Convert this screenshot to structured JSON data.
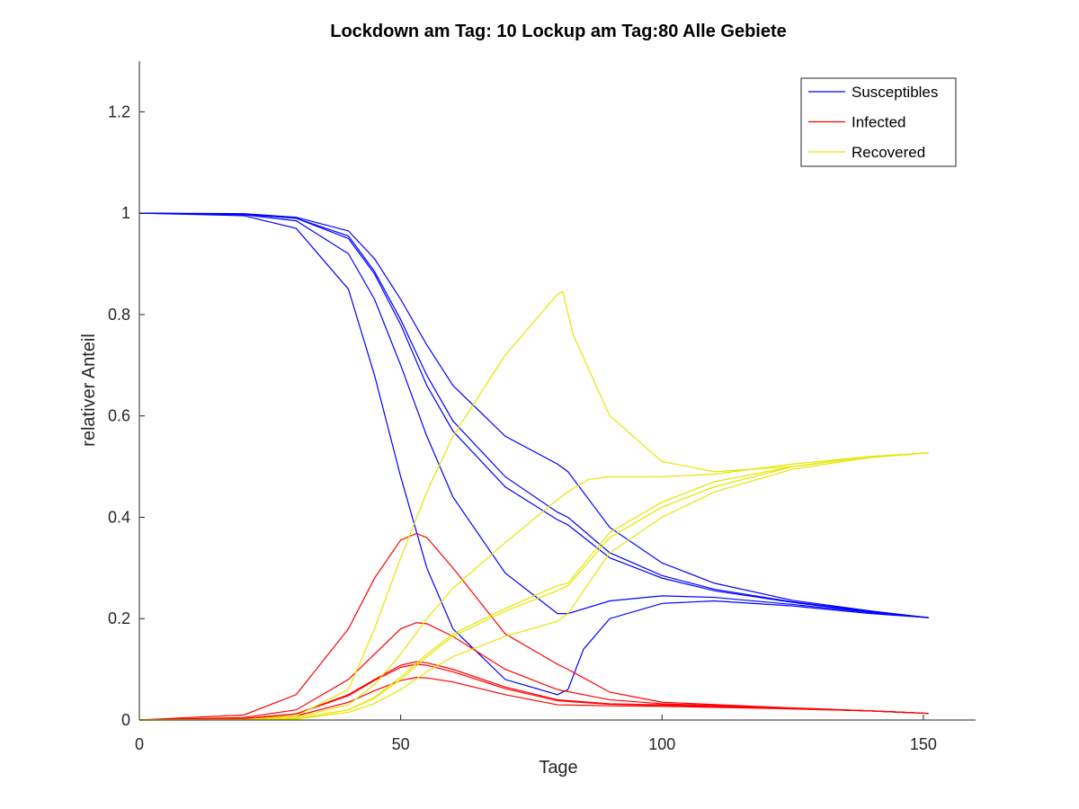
{
  "chart_data": {
    "type": "line",
    "title": "Lockdown am Tag: 10   Lockup am Tag:80  Alle Gebiete",
    "xlabel": "Tage",
    "ylabel": "relativer Anteil",
    "xlim": [
      0,
      160
    ],
    "ylim": [
      0,
      1.3
    ],
    "xticks": [
      0,
      50,
      100,
      150
    ],
    "yticks": [
      0,
      0.2,
      0.4,
      0.6,
      0.8,
      1,
      1.2
    ],
    "grid": false,
    "legend_position": "top-right",
    "legend": [
      {
        "label": "Susceptibles",
        "color": "#0000ff"
      },
      {
        "label": "Infected",
        "color": "#ff0000"
      },
      {
        "label": "Recovered",
        "color": "#e6e600"
      }
    ],
    "series": [
      {
        "group": "Susceptibles",
        "color": "#0000ff",
        "points": [
          [
            0,
            1
          ],
          [
            20,
            0.995
          ],
          [
            30,
            0.97
          ],
          [
            40,
            0.85
          ],
          [
            45,
            0.68
          ],
          [
            50,
            0.48
          ],
          [
            55,
            0.3
          ],
          [
            60,
            0.18
          ],
          [
            70,
            0.08
          ],
          [
            80,
            0.05
          ],
          [
            82,
            0.06
          ],
          [
            85,
            0.14
          ],
          [
            90,
            0.2
          ],
          [
            100,
            0.23
          ],
          [
            110,
            0.235
          ],
          [
            125,
            0.225
          ],
          [
            140,
            0.21
          ],
          [
            151,
            0.202
          ]
        ]
      },
      {
        "group": "Susceptibles",
        "color": "#0000ff",
        "points": [
          [
            0,
            1
          ],
          [
            20,
            0.997
          ],
          [
            30,
            0.985
          ],
          [
            40,
            0.92
          ],
          [
            45,
            0.83
          ],
          [
            50,
            0.7
          ],
          [
            55,
            0.56
          ],
          [
            60,
            0.44
          ],
          [
            70,
            0.29
          ],
          [
            80,
            0.21
          ],
          [
            82,
            0.21
          ],
          [
            90,
            0.235
          ],
          [
            100,
            0.245
          ],
          [
            110,
            0.242
          ],
          [
            125,
            0.228
          ],
          [
            140,
            0.212
          ],
          [
            151,
            0.202
          ]
        ]
      },
      {
        "group": "Susceptibles",
        "color": "#0000ff",
        "points": [
          [
            0,
            1
          ],
          [
            20,
            0.998
          ],
          [
            30,
            0.99
          ],
          [
            40,
            0.95
          ],
          [
            45,
            0.88
          ],
          [
            50,
            0.78
          ],
          [
            55,
            0.66
          ],
          [
            60,
            0.57
          ],
          [
            70,
            0.46
          ],
          [
            80,
            0.395
          ],
          [
            82,
            0.385
          ],
          [
            90,
            0.32
          ],
          [
            100,
            0.28
          ],
          [
            110,
            0.255
          ],
          [
            125,
            0.232
          ],
          [
            140,
            0.213
          ],
          [
            151,
            0.202
          ]
        ]
      },
      {
        "group": "Susceptibles",
        "color": "#0000ff",
        "points": [
          [
            0,
            1
          ],
          [
            20,
            0.998
          ],
          [
            30,
            0.99
          ],
          [
            40,
            0.955
          ],
          [
            45,
            0.885
          ],
          [
            50,
            0.79
          ],
          [
            55,
            0.68
          ],
          [
            60,
            0.59
          ],
          [
            70,
            0.48
          ],
          [
            80,
            0.41
          ],
          [
            82,
            0.4
          ],
          [
            90,
            0.33
          ],
          [
            100,
            0.285
          ],
          [
            110,
            0.258
          ],
          [
            125,
            0.233
          ],
          [
            140,
            0.214
          ],
          [
            151,
            0.202
          ]
        ]
      },
      {
        "group": "Susceptibles",
        "color": "#0000ff",
        "points": [
          [
            0,
            1
          ],
          [
            20,
            0.999
          ],
          [
            30,
            0.992
          ],
          [
            40,
            0.965
          ],
          [
            45,
            0.91
          ],
          [
            50,
            0.83
          ],
          [
            55,
            0.74
          ],
          [
            60,
            0.66
          ],
          [
            70,
            0.56
          ],
          [
            80,
            0.505
          ],
          [
            82,
            0.49
          ],
          [
            90,
            0.38
          ],
          [
            100,
            0.31
          ],
          [
            110,
            0.27
          ],
          [
            125,
            0.236
          ],
          [
            140,
            0.215
          ],
          [
            151,
            0.202
          ]
        ]
      },
      {
        "group": "Infected",
        "color": "#ff0000",
        "points": [
          [
            0,
            0
          ],
          [
            20,
            0.01
          ],
          [
            30,
            0.05
          ],
          [
            40,
            0.18
          ],
          [
            45,
            0.28
          ],
          [
            50,
            0.355
          ],
          [
            53,
            0.368
          ],
          [
            55,
            0.36
          ],
          [
            60,
            0.3
          ],
          [
            70,
            0.17
          ],
          [
            80,
            0.11
          ],
          [
            82,
            0.1
          ],
          [
            90,
            0.055
          ],
          [
            100,
            0.035
          ],
          [
            120,
            0.026
          ],
          [
            140,
            0.018
          ],
          [
            151,
            0.013
          ]
        ]
      },
      {
        "group": "Infected",
        "color": "#ff0000",
        "points": [
          [
            0,
            0
          ],
          [
            20,
            0.005
          ],
          [
            30,
            0.02
          ],
          [
            40,
            0.08
          ],
          [
            45,
            0.13
          ],
          [
            50,
            0.18
          ],
          [
            53,
            0.192
          ],
          [
            55,
            0.19
          ],
          [
            60,
            0.165
          ],
          [
            70,
            0.1
          ],
          [
            80,
            0.06
          ],
          [
            90,
            0.04
          ],
          [
            100,
            0.032
          ],
          [
            120,
            0.025
          ],
          [
            140,
            0.018
          ],
          [
            151,
            0.013
          ]
        ]
      },
      {
        "group": "Infected",
        "color": "#ff0000",
        "points": [
          [
            0,
            0
          ],
          [
            20,
            0.003
          ],
          [
            30,
            0.012
          ],
          [
            40,
            0.05
          ],
          [
            45,
            0.08
          ],
          [
            50,
            0.108
          ],
          [
            53,
            0.115
          ],
          [
            55,
            0.113
          ],
          [
            60,
            0.1
          ],
          [
            70,
            0.065
          ],
          [
            80,
            0.04
          ],
          [
            90,
            0.032
          ],
          [
            100,
            0.03
          ],
          [
            120,
            0.024
          ],
          [
            140,
            0.018
          ],
          [
            151,
            0.013
          ]
        ]
      },
      {
        "group": "Infected",
        "color": "#ff0000",
        "points": [
          [
            0,
            0
          ],
          [
            20,
            0.003
          ],
          [
            30,
            0.012
          ],
          [
            40,
            0.048
          ],
          [
            45,
            0.078
          ],
          [
            50,
            0.104
          ],
          [
            53,
            0.11
          ],
          [
            55,
            0.108
          ],
          [
            60,
            0.095
          ],
          [
            70,
            0.062
          ],
          [
            80,
            0.038
          ],
          [
            90,
            0.031
          ],
          [
            100,
            0.029
          ],
          [
            120,
            0.024
          ],
          [
            140,
            0.018
          ],
          [
            151,
            0.013
          ]
        ]
      },
      {
        "group": "Infected",
        "color": "#ff0000",
        "points": [
          [
            0,
            0
          ],
          [
            20,
            0.002
          ],
          [
            30,
            0.008
          ],
          [
            40,
            0.035
          ],
          [
            45,
            0.058
          ],
          [
            50,
            0.078
          ],
          [
            53,
            0.084
          ],
          [
            55,
            0.083
          ],
          [
            60,
            0.075
          ],
          [
            70,
            0.05
          ],
          [
            80,
            0.03
          ],
          [
            90,
            0.028
          ],
          [
            100,
            0.027
          ],
          [
            120,
            0.023
          ],
          [
            140,
            0.018
          ],
          [
            151,
            0.013
          ]
        ]
      },
      {
        "group": "Recovered",
        "color": "#e6e600",
        "points": [
          [
            0,
            0
          ],
          [
            20,
            0.001
          ],
          [
            30,
            0.008
          ],
          [
            40,
            0.06
          ],
          [
            45,
            0.18
          ],
          [
            50,
            0.32
          ],
          [
            55,
            0.45
          ],
          [
            60,
            0.56
          ],
          [
            70,
            0.72
          ],
          [
            80,
            0.84
          ],
          [
            81,
            0.845
          ],
          [
            83,
            0.76
          ],
          [
            90,
            0.6
          ],
          [
            100,
            0.51
          ],
          [
            110,
            0.49
          ],
          [
            125,
            0.5
          ],
          [
            140,
            0.52
          ],
          [
            151,
            0.527
          ]
        ]
      },
      {
        "group": "Recovered",
        "color": "#e6e600",
        "points": [
          [
            0,
            0
          ],
          [
            20,
            0.001
          ],
          [
            30,
            0.005
          ],
          [
            40,
            0.03
          ],
          [
            45,
            0.07
          ],
          [
            50,
            0.13
          ],
          [
            55,
            0.2
          ],
          [
            60,
            0.26
          ],
          [
            70,
            0.35
          ],
          [
            80,
            0.435
          ],
          [
            82,
            0.45
          ],
          [
            86,
            0.475
          ],
          [
            90,
            0.48
          ],
          [
            100,
            0.48
          ],
          [
            110,
            0.485
          ],
          [
            125,
            0.505
          ],
          [
            140,
            0.52
          ],
          [
            151,
            0.527
          ]
        ]
      },
      {
        "group": "Recovered",
        "color": "#e6e600",
        "points": [
          [
            0,
            0
          ],
          [
            20,
            0.0005
          ],
          [
            30,
            0.003
          ],
          [
            40,
            0.02
          ],
          [
            45,
            0.045
          ],
          [
            50,
            0.085
          ],
          [
            55,
            0.13
          ],
          [
            60,
            0.17
          ],
          [
            70,
            0.22
          ],
          [
            80,
            0.265
          ],
          [
            82,
            0.27
          ],
          [
            90,
            0.37
          ],
          [
            100,
            0.43
          ],
          [
            110,
            0.47
          ],
          [
            125,
            0.5
          ],
          [
            140,
            0.52
          ],
          [
            151,
            0.527
          ]
        ]
      },
      {
        "group": "Recovered",
        "color": "#e6e600",
        "points": [
          [
            0,
            0
          ],
          [
            20,
            0.0005
          ],
          [
            30,
            0.003
          ],
          [
            40,
            0.02
          ],
          [
            45,
            0.043
          ],
          [
            50,
            0.08
          ],
          [
            55,
            0.125
          ],
          [
            60,
            0.165
          ],
          [
            70,
            0.215
          ],
          [
            80,
            0.255
          ],
          [
            82,
            0.265
          ],
          [
            90,
            0.36
          ],
          [
            100,
            0.42
          ],
          [
            110,
            0.46
          ],
          [
            125,
            0.5
          ],
          [
            140,
            0.52
          ],
          [
            151,
            0.527
          ]
        ]
      },
      {
        "group": "Recovered",
        "color": "#e6e600",
        "points": [
          [
            0,
            0
          ],
          [
            20,
            0.0003
          ],
          [
            30,
            0.002
          ],
          [
            40,
            0.015
          ],
          [
            45,
            0.033
          ],
          [
            50,
            0.06
          ],
          [
            55,
            0.095
          ],
          [
            60,
            0.125
          ],
          [
            70,
            0.165
          ],
          [
            80,
            0.195
          ],
          [
            82,
            0.21
          ],
          [
            90,
            0.33
          ],
          [
            100,
            0.4
          ],
          [
            110,
            0.45
          ],
          [
            125,
            0.495
          ],
          [
            140,
            0.518
          ],
          [
            151,
            0.527
          ]
        ]
      }
    ]
  }
}
